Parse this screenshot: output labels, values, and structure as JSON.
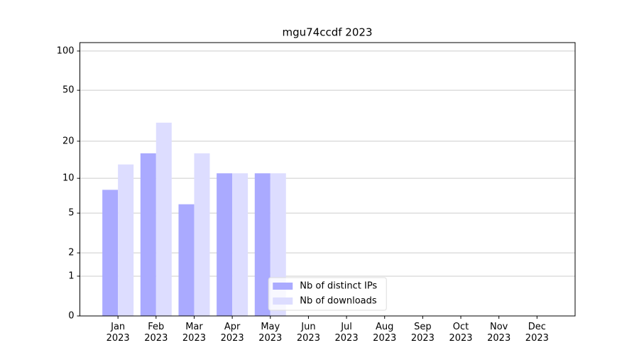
{
  "chart_data": {
    "type": "bar",
    "title": "mgu74ccdf 2023",
    "categories": [
      "Jan\n2023",
      "Feb\n2023",
      "Mar\n2023",
      "Apr\n2023",
      "May\n2023",
      "Jun\n2023",
      "Jul\n2023",
      "Aug\n2023",
      "Sep\n2023",
      "Oct\n2023",
      "Nov\n2023",
      "Dec\n2023"
    ],
    "series": [
      {
        "name": "Nb of distinct IPs",
        "color": "#aaaaff",
        "values": [
          8,
          16,
          6,
          11,
          11,
          null,
          null,
          null,
          null,
          null,
          null,
          null
        ]
      },
      {
        "name": "Nb of downloads",
        "color": "#ddddff",
        "values": [
          13,
          28,
          16,
          11,
          11,
          null,
          null,
          null,
          null,
          null,
          null,
          null
        ]
      }
    ],
    "yscale": "log1p",
    "ylim": [
      0,
      116
    ],
    "yticks": [
      0,
      1,
      2,
      5,
      10,
      20,
      50,
      100
    ],
    "grid": true,
    "legend": "lower center"
  }
}
